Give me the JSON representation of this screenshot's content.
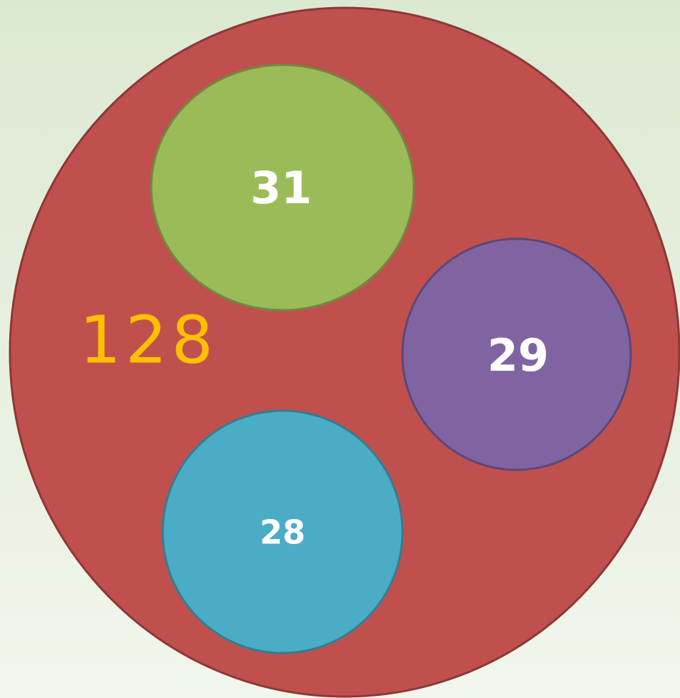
{
  "outer": {
    "label": "128"
  },
  "circles": [
    {
      "label": "31"
    },
    {
      "label": "29"
    },
    {
      "label": "28"
    }
  ]
}
